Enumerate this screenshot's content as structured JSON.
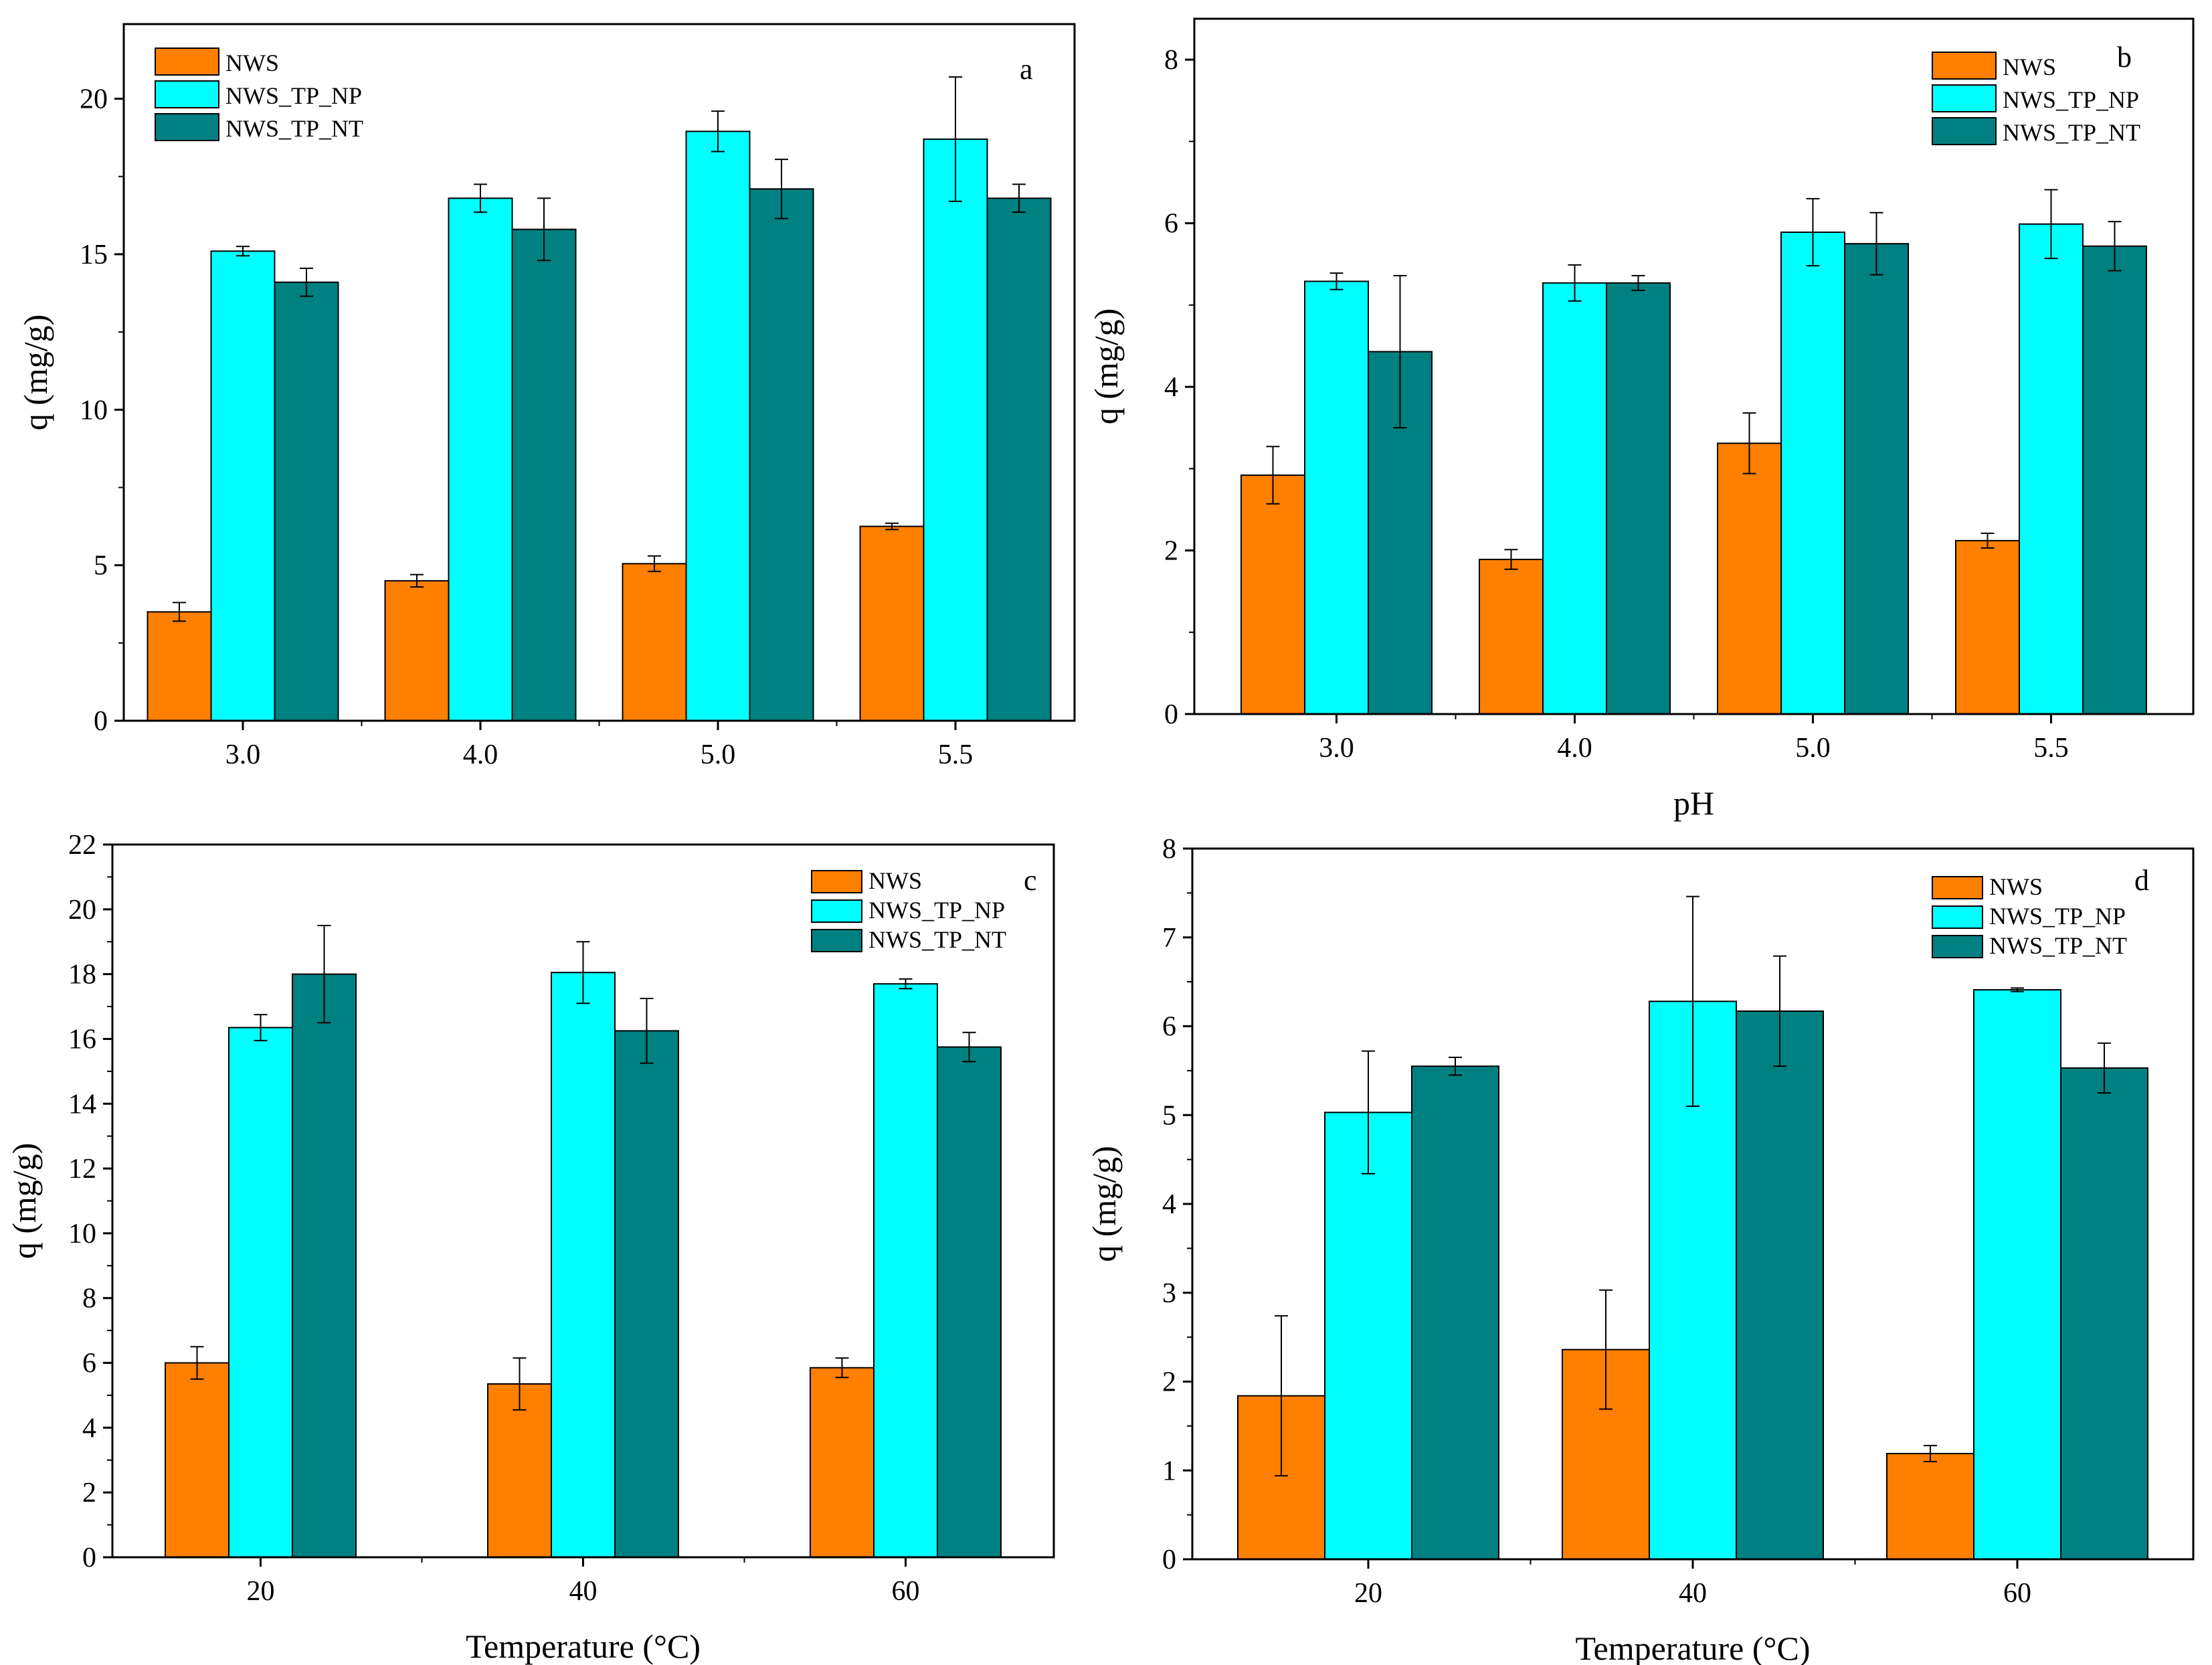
{
  "colors": {
    "NWS": "#ff7f00",
    "NWS_TP_NP": "#00ffff",
    "NWS_TP_NT": "#008080"
  },
  "chart_data": [
    {
      "type": "bar",
      "panel": "a",
      "categories": [
        "3.0",
        "4.0",
        "5.0",
        "5.5"
      ],
      "series": [
        {
          "name": "NWS",
          "values": [
            3.5,
            4.5,
            5.05,
            6.25
          ],
          "errors": [
            0.3,
            0.2,
            0.25,
            0.1
          ]
        },
        {
          "name": "NWS_TP_NP",
          "values": [
            15.1,
            16.8,
            18.95,
            18.7
          ],
          "errors": [
            0.15,
            0.45,
            0.65,
            2.0
          ]
        },
        {
          "name": "NWS_TP_NT",
          "values": [
            14.1,
            15.8,
            17.1,
            16.8
          ],
          "errors": [
            0.45,
            1.0,
            0.95,
            0.45
          ]
        }
      ],
      "xlabel": "",
      "ylabel": "q (mg/g)",
      "ylim": [
        0,
        22.4
      ],
      "yticks": [
        0,
        5,
        10,
        15,
        20
      ],
      "ytick_labels": [
        "0",
        "5",
        "10",
        "15",
        "20"
      ],
      "legend": "top-left"
    },
    {
      "type": "bar",
      "panel": "b",
      "categories": [
        "3.0",
        "4.0",
        "5.0",
        "5.5"
      ],
      "series": [
        {
          "name": "NWS",
          "values": [
            2.92,
            1.89,
            3.31,
            2.12
          ],
          "errors": [
            0.35,
            0.12,
            0.37,
            0.09
          ]
        },
        {
          "name": "NWS_TP_NP",
          "values": [
            5.29,
            5.27,
            5.89,
            5.99
          ],
          "errors": [
            0.1,
            0.22,
            0.41,
            0.42
          ]
        },
        {
          "name": "NWS_TP_NT",
          "values": [
            4.43,
            5.27,
            5.75,
            5.72
          ],
          "errors": [
            0.93,
            0.09,
            0.38,
            0.3
          ]
        }
      ],
      "xlabel": "pH",
      "ylabel": "q (mg/g)",
      "ylim": [
        0,
        8.5
      ],
      "yticks": [
        0,
        2,
        4,
        6,
        8
      ],
      "ytick_labels": [
        "0",
        "2",
        "4",
        "6",
        "8"
      ],
      "legend": "top-right"
    },
    {
      "type": "bar",
      "panel": "c",
      "categories": [
        "20",
        "40",
        "60"
      ],
      "series": [
        {
          "name": "NWS",
          "values": [
            6.0,
            5.35,
            5.85
          ],
          "errors": [
            0.5,
            0.8,
            0.3
          ]
        },
        {
          "name": "NWS_TP_NP",
          "values": [
            16.35,
            18.05,
            17.7
          ],
          "errors": [
            0.4,
            0.95,
            0.15
          ]
        },
        {
          "name": "NWS_TP_NT",
          "values": [
            18.0,
            16.25,
            15.75
          ],
          "errors": [
            1.5,
            1.0,
            0.45
          ]
        }
      ],
      "xlabel": "Temperature (°C)",
      "ylabel": "q (mg/g)",
      "ylim": [
        0,
        22
      ],
      "yticks": [
        0,
        2,
        4,
        6,
        8,
        10,
        12,
        14,
        16,
        18,
        20,
        22
      ],
      "ytick_labels": [
        "0",
        "2",
        "4",
        "6",
        "8",
        "10",
        "12",
        "14",
        "16",
        "18",
        "20",
        "22"
      ],
      "legend": "top-right"
    },
    {
      "type": "bar",
      "panel": "d",
      "categories": [
        "20",
        "40",
        "60"
      ],
      "series": [
        {
          "name": "NWS",
          "values": [
            1.84,
            2.36,
            1.19
          ],
          "errors": [
            0.9,
            0.67,
            0.09
          ]
        },
        {
          "name": "NWS_TP_NP",
          "values": [
            5.03,
            6.28,
            6.41
          ],
          "errors": [
            0.69,
            1.18,
            0.02
          ]
        },
        {
          "name": "NWS_TP_NT",
          "values": [
            5.55,
            6.17,
            5.53
          ],
          "errors": [
            0.1,
            0.62,
            0.28
          ]
        }
      ],
      "xlabel": "Temperature (°C)",
      "ylabel": "q (mg/g)",
      "ylim": [
        0,
        8
      ],
      "yticks": [
        0,
        1,
        2,
        3,
        4,
        5,
        6,
        7,
        8
      ],
      "ytick_labels": [
        "0",
        "1",
        "2",
        "3",
        "4",
        "5",
        "6",
        "7",
        "8"
      ],
      "legend": "top-right"
    }
  ]
}
